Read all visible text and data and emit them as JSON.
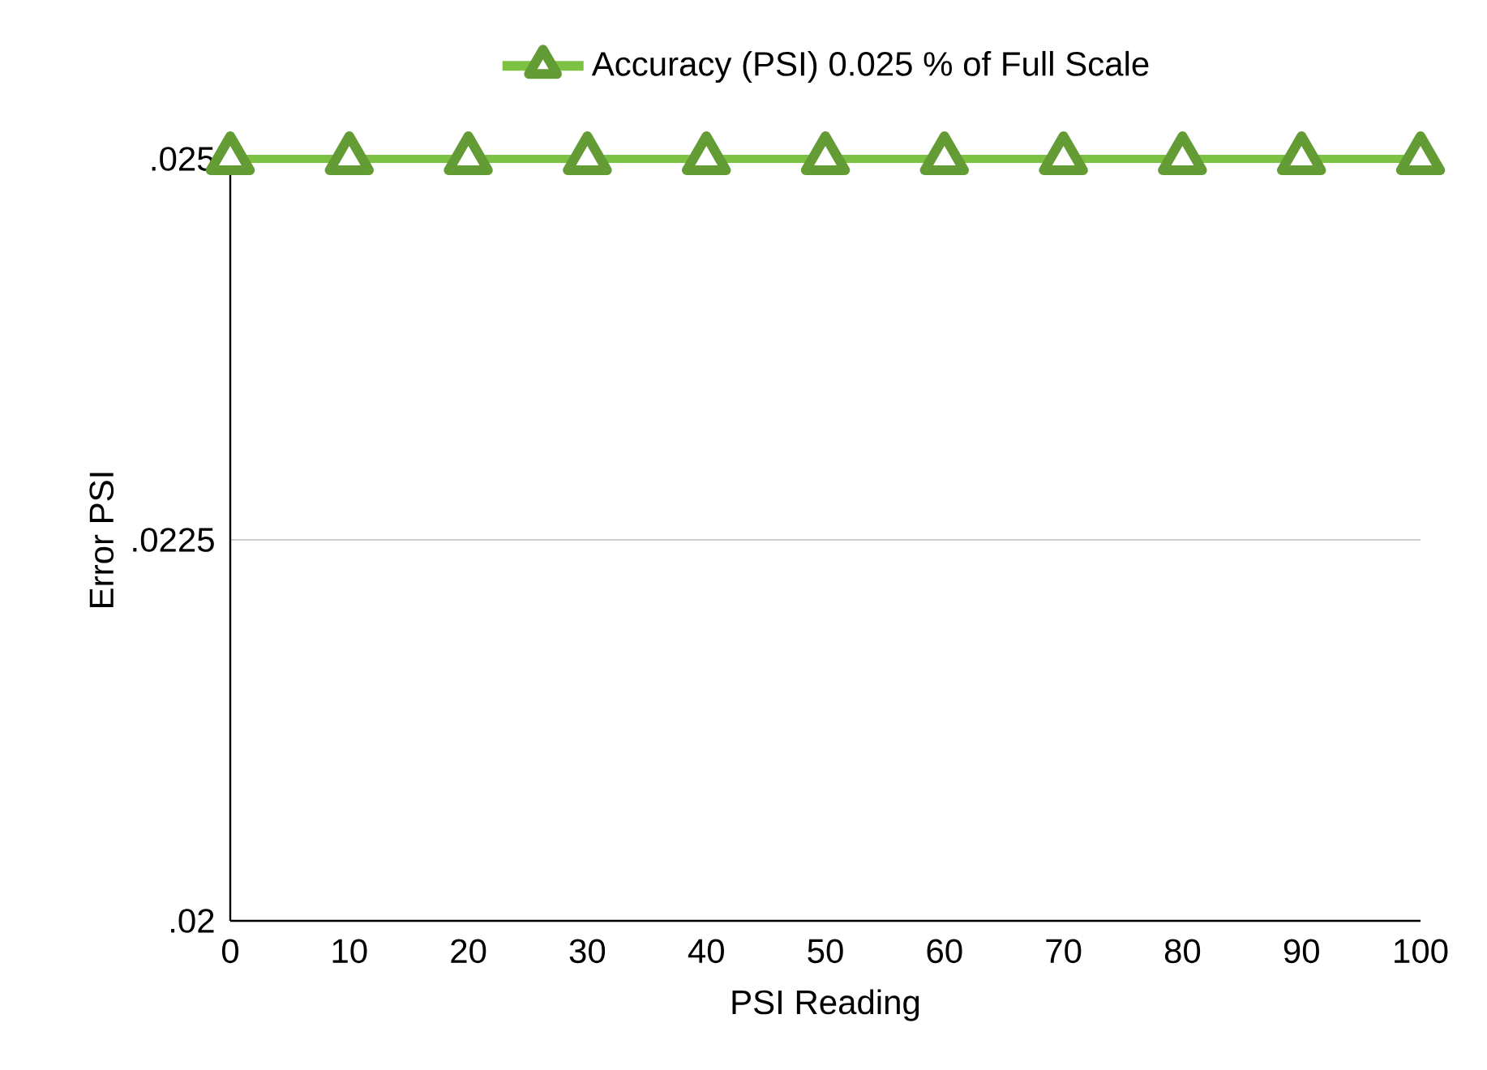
{
  "chart_data": {
    "type": "line",
    "xlabel": "PSI Reading",
    "ylabel": "Error PSI",
    "x": [
      0,
      10,
      20,
      30,
      40,
      50,
      60,
      70,
      80,
      90,
      100
    ],
    "series": [
      {
        "name": "Accuracy (PSI) 0.025 % of Full Scale",
        "color": "#7cc242",
        "values": [
          0.025,
          0.025,
          0.025,
          0.025,
          0.025,
          0.025,
          0.025,
          0.025,
          0.025,
          0.025,
          0.025
        ]
      }
    ],
    "xlim": [
      0,
      100
    ],
    "xticks": [
      0,
      10,
      20,
      30,
      40,
      50,
      60,
      70,
      80,
      90,
      100
    ],
    "ylim": [
      0.02,
      0.025
    ],
    "yticks": [
      {
        "value": 0.02,
        "label": ".02"
      },
      {
        "value": 0.0225,
        "label": ".0225"
      },
      {
        "value": 0.025,
        "label": ".025"
      }
    ],
    "grid": "y",
    "legend": "top",
    "marker": "triangle",
    "line_style": "solid"
  }
}
